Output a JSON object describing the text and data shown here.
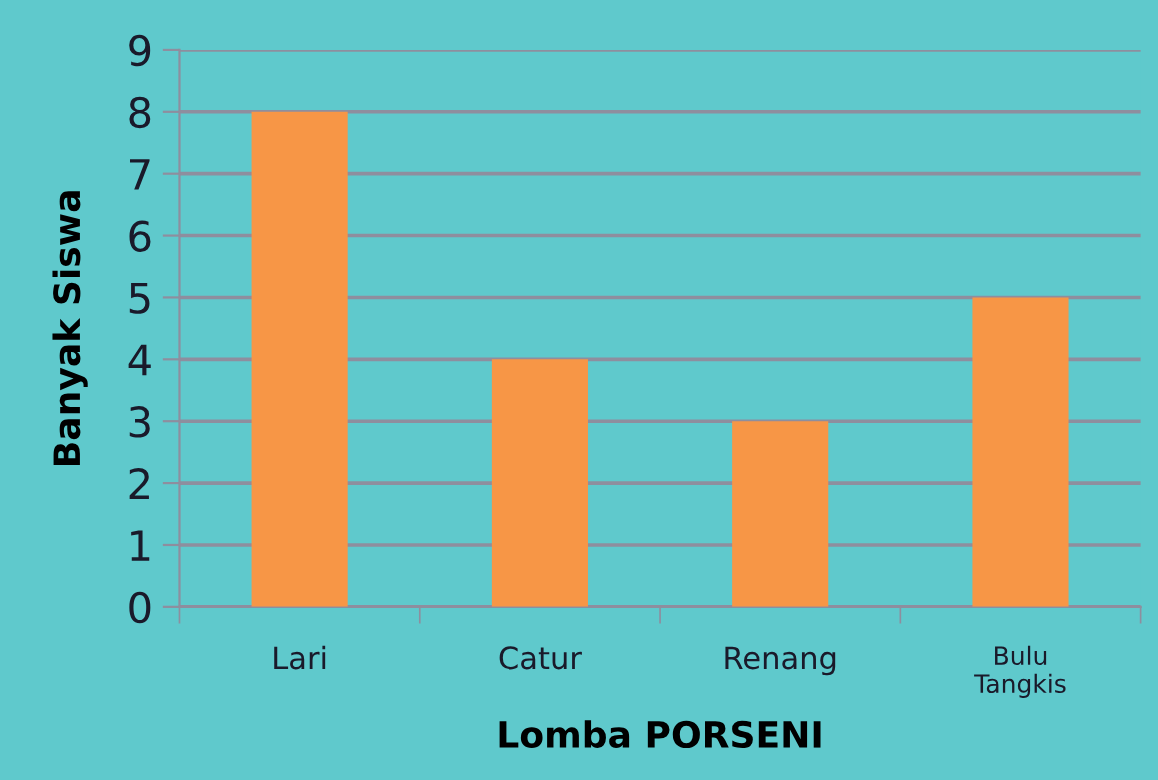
{
  "chart_data": {
    "type": "bar",
    "xlabel": "Lomba PORSENI",
    "ylabel": "Banyak Siswa",
    "categories": [
      "Lari",
      "Catur",
      "Renang",
      "Bulu\nTangkis"
    ],
    "values": [
      8,
      4,
      3,
      5
    ],
    "color": "#f79646",
    "ylim": [
      0,
      9
    ],
    "yticks": [
      0,
      1,
      2,
      3,
      4,
      5,
      6,
      7,
      8,
      9
    ],
    "grid": "y"
  }
}
